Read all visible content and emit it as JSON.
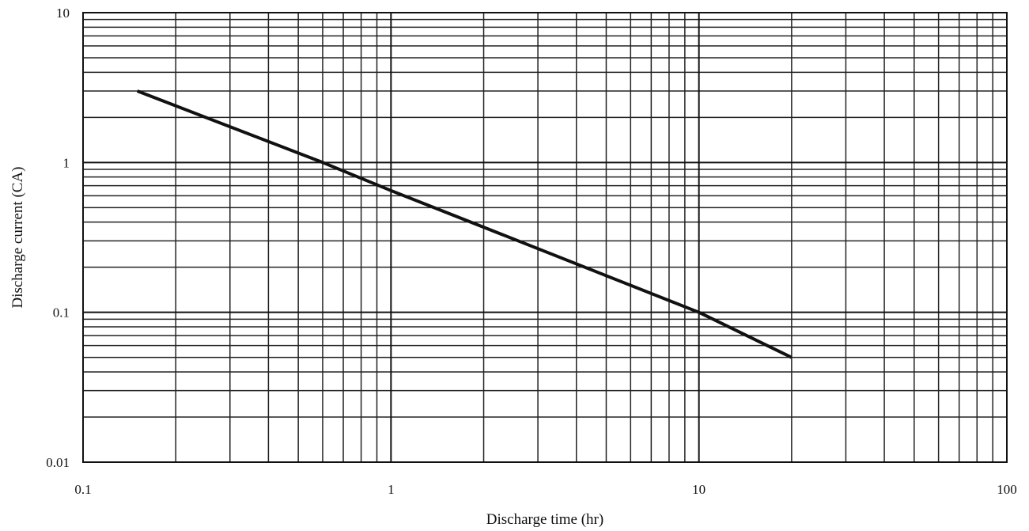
{
  "chart_data": {
    "type": "line",
    "title": "",
    "xlabel": "Discharge time (hr)",
    "ylabel": "Discharge current (CA)",
    "xscale": "log",
    "yscale": "log",
    "xlim": [
      0.1,
      100
    ],
    "ylim": [
      0.01,
      10
    ],
    "grid": true,
    "legend": "none",
    "x_tick_labels": [
      "0.1",
      "1",
      "10",
      "100"
    ],
    "y_tick_labels": [
      "0.01",
      "0.1",
      "1",
      "10"
    ],
    "series": [
      {
        "x": [
          0.15,
          0.6,
          1,
          10,
          20
        ],
        "y": [
          3,
          1,
          0.65,
          0.1,
          0.05
        ],
        "color": "#111111"
      }
    ]
  }
}
